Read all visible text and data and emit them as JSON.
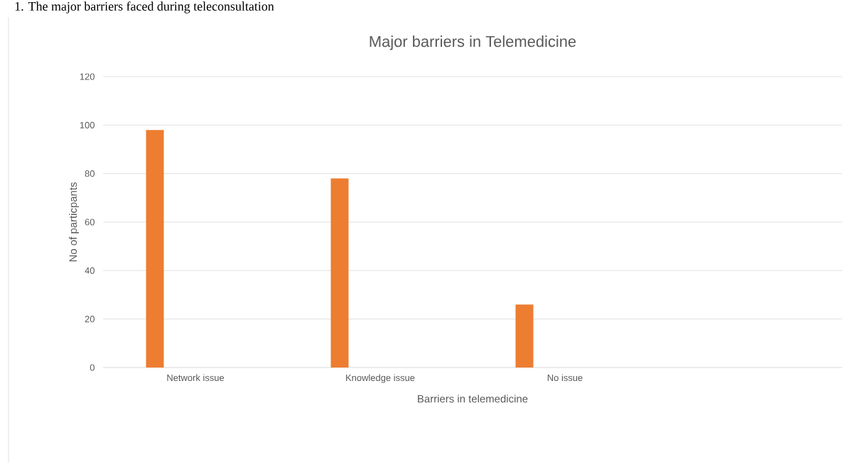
{
  "chart_data": {
    "type": "bar",
    "title": "Major barriers in Telemedicine",
    "xlabel": "Barriers in telemedicine",
    "ylabel": "No of particpants",
    "annotations": [
      "1.      The major barriers faced during teleconsultation"
    ],
    "categories": [
      "Network issue",
      "Knowledge issue",
      "No issue",
      null
    ],
    "series": [
      {
        "color": "#ed7d31",
        "values": [
          98,
          78,
          26,
          null
        ]
      }
    ],
    "ylim": [
      0,
      120
    ],
    "yticks": [
      0,
      20,
      40,
      60,
      80,
      100,
      120
    ],
    "grid": "y"
  }
}
